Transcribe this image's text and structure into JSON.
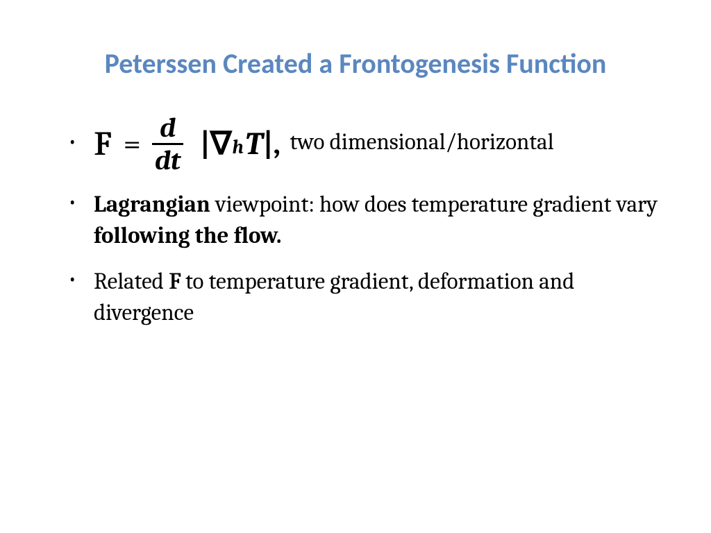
{
  "title": "Peterssen Created a Frontogenesis Function",
  "title_color": "#5b87bf",
  "title_fontsize": 40,
  "bullet_fontsize": 33,
  "equation": {
    "lhs_symbol": "F",
    "equals": "=",
    "frac_num": "d",
    "frac_den": "dt",
    "bar": "|",
    "nabla": "∇",
    "subscript": "h",
    "var": "T",
    "comma": ",",
    "trailing": "two dimensional/horizontal",
    "eq_fontsize": 46,
    "frac_fontsize": 40,
    "sub_fontsize": 28
  },
  "bullets": {
    "b2_bold1": "Lagrangian",
    "b2_mid": " viewpoint:  how does temperature gradient vary ",
    "b2_bold2": "following the flow.",
    "b3_pre": "Related ",
    "b3_F": "F",
    "b3_post": " to temperature gradient, deformation and divergence"
  }
}
